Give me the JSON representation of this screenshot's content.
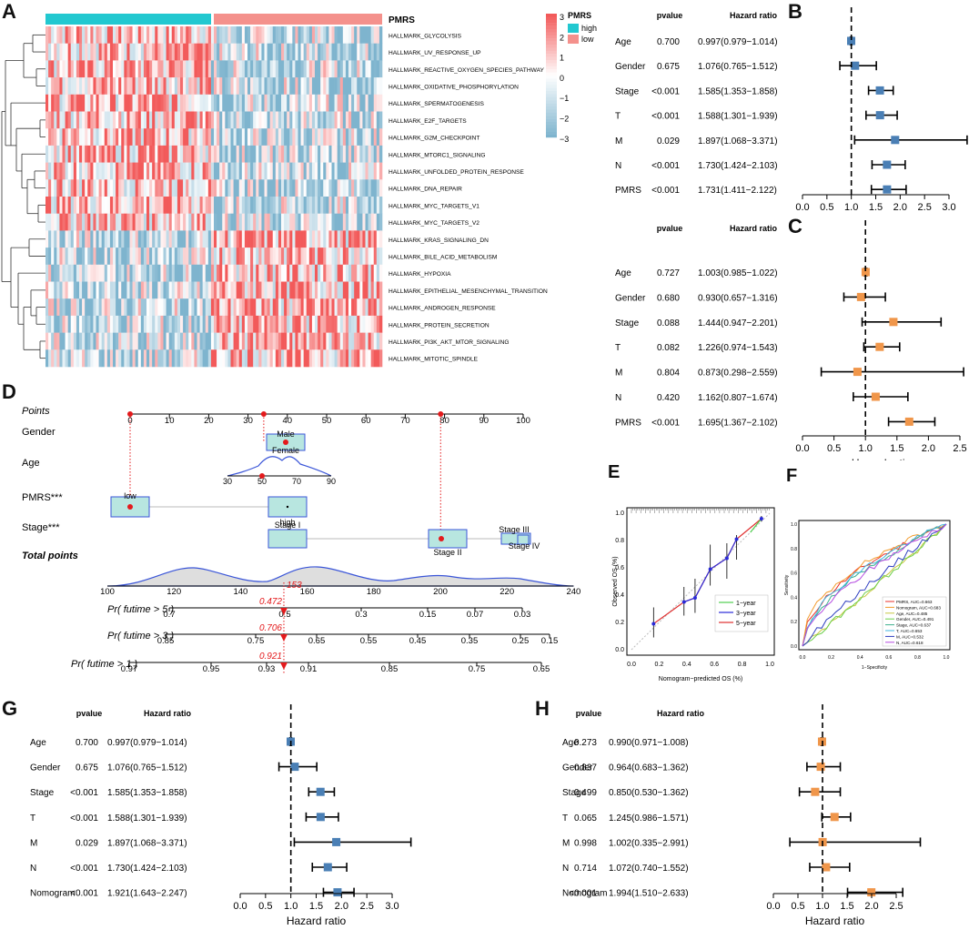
{
  "colors": {
    "high": "#22c8d0",
    "low": "#f4918c",
    "blue": "#4a7fb5",
    "orange": "#f0964a",
    "hot": "#f24e4e",
    "cold": "#8fc4d8",
    "nomo_box": "#b8e6e0",
    "nomo_edge": "#3a55d8",
    "dot": "#e41a1c"
  },
  "panel_labels": {
    "a": "A",
    "b": "B",
    "c": "C",
    "d": "D",
    "e": "E",
    "f": "F",
    "g": "G",
    "h": "H"
  },
  "heatmap": {
    "group_title": "PMRS",
    "legend_title": "PMRS",
    "legend_high": "high",
    "legend_low": "low",
    "scale_ticks": [
      "3",
      "2",
      "1",
      "0",
      "−1",
      "−2",
      "−3"
    ],
    "genesets": [
      "HALLMARK_GLYCOLYSIS",
      "HALLMARK_UV_RESPONSE_UP",
      "HALLMARK_REACTIVE_OXYGEN_SPECIES_PATHWAY",
      "HALLMARK_OXIDATIVE_PHOSPHORYLATION",
      "HALLMARK_SPERMATOGENESIS",
      "HALLMARK_E2F_TARGETS",
      "HALLMARK_G2M_CHECKPOINT",
      "HALLMARK_MTORC1_SIGNALING",
      "HALLMARK_UNFOLDED_PROTEIN_RESPONSE",
      "HALLMARK_DNA_REPAIR",
      "HALLMARK_MYC_TARGETS_V1",
      "HALLMARK_MYC_TARGETS_V2",
      "HALLMARK_KRAS_SIGNALING_DN",
      "HALLMARK_BILE_ACID_METABOLISM",
      "HALLMARK_HYPOXIA",
      "HALLMARK_EPITHELIAL_MESENCHYMAL_TRANSITION",
      "HALLMARK_ANDROGEN_RESPONSE",
      "HALLMARK_PROTEIN_SECRETION",
      "HALLMARK_PI3K_AKT_MTOR_SIGNALING",
      "HALLMARK_MITOTIC_SPINDLE"
    ]
  },
  "nomogram": {
    "row_labels": [
      "Points",
      "Gender",
      "Age",
      "PMRS***",
      "Stage***",
      "Total points",
      "Pr( futime > 5 )",
      "Pr( futime > 3 )",
      "Pr( futime > 1 )"
    ],
    "points_ticks": [
      "0",
      "10",
      "20",
      "30",
      "40",
      "50",
      "60",
      "70",
      "80",
      "90",
      "100"
    ],
    "gender_labels": [
      "Male",
      "Female"
    ],
    "age_ticks": [
      "30",
      "50",
      "70",
      "90"
    ],
    "pmrs_labels": [
      "low",
      "high"
    ],
    "stage_labels": [
      "Stage I",
      "Stage II",
      "Stage III",
      "Stage IV"
    ],
    "total_ticks": [
      "100",
      "120",
      "140",
      "160",
      "180",
      "200",
      "220",
      "240"
    ],
    "total_value": "153",
    "pr5_ticks": [
      "0.7",
      "0.5",
      "0.3",
      "0.15",
      "0.07",
      "0.03"
    ],
    "pr5_value": "0.472",
    "pr3_ticks": [
      "0.85",
      "0.75",
      "0.65",
      "0.55",
      "0.45",
      "0.35",
      "0.25",
      "0.15"
    ],
    "pr3_value": "0.706",
    "pr1_ticks": [
      "0.97",
      "0.95",
      "0.93",
      "0.91",
      "0.85",
      "0.75",
      "0.65"
    ],
    "pr1_value": "0.921"
  },
  "chart_data": [
    {
      "id": "B",
      "type": "forest",
      "col_pvalue": "pvalue",
      "col_hr": "Hazard ratio",
      "xlabel": "Hazard ratio",
      "xlim": [
        0,
        3
      ],
      "xticks": [
        "0.0",
        "0.5",
        "1.0",
        "1.5",
        "2.0",
        "2.5",
        "3.0"
      ],
      "ref": 1,
      "color": "blue",
      "rows": [
        {
          "label": "Age",
          "pvalue": "0.700",
          "hr_text": "0.997(0.979−1.014)",
          "hr": 0.997,
          "lo": 0.979,
          "hi": 1.014
        },
        {
          "label": "Gender",
          "pvalue": "0.675",
          "hr_text": "1.076(0.765−1.512)",
          "hr": 1.076,
          "lo": 0.765,
          "hi": 1.512
        },
        {
          "label": "Stage",
          "pvalue": "<0.001",
          "hr_text": "1.585(1.353−1.858)",
          "hr": 1.585,
          "lo": 1.353,
          "hi": 1.858
        },
        {
          "label": "T",
          "pvalue": "<0.001",
          "hr_text": "1.588(1.301−1.939)",
          "hr": 1.588,
          "lo": 1.301,
          "hi": 1.939
        },
        {
          "label": "M",
          "pvalue": "0.029",
          "hr_text": "1.897(1.068−3.371)",
          "hr": 1.897,
          "lo": 1.068,
          "hi": 3.371
        },
        {
          "label": "N",
          "pvalue": "<0.001",
          "hr_text": "1.730(1.424−2.103)",
          "hr": 1.73,
          "lo": 1.424,
          "hi": 2.103
        },
        {
          "label": "PMRS",
          "pvalue": "<0.001",
          "hr_text": "1.731(1.411−2.122)",
          "hr": 1.731,
          "lo": 1.411,
          "hi": 2.122
        }
      ]
    },
    {
      "id": "C",
      "type": "forest",
      "col_pvalue": "pvalue",
      "col_hr": "Hazard ratio",
      "xlabel": "Hazard ratio",
      "xlim": [
        0,
        2.5
      ],
      "xticks": [
        "0.0",
        "0.5",
        "1.0",
        "1.5",
        "2.0",
        "2.5"
      ],
      "ref": 1,
      "color": "orange",
      "rows": [
        {
          "label": "Age",
          "pvalue": "0.727",
          "hr_text": "1.003(0.985−1.022)",
          "hr": 1.003,
          "lo": 0.985,
          "hi": 1.022
        },
        {
          "label": "Gender",
          "pvalue": "0.680",
          "hr_text": "0.930(0.657−1.316)",
          "hr": 0.93,
          "lo": 0.657,
          "hi": 1.316
        },
        {
          "label": "Stage",
          "pvalue": "0.088",
          "hr_text": "1.444(0.947−2.201)",
          "hr": 1.444,
          "lo": 0.947,
          "hi": 2.201
        },
        {
          "label": "T",
          "pvalue": "0.082",
          "hr_text": "1.226(0.974−1.543)",
          "hr": 1.226,
          "lo": 0.974,
          "hi": 1.543
        },
        {
          "label": "M",
          "pvalue": "0.804",
          "hr_text": "0.873(0.298−2.559)",
          "hr": 0.873,
          "lo": 0.298,
          "hi": 2.559
        },
        {
          "label": "N",
          "pvalue": "0.420",
          "hr_text": "1.162(0.807−1.674)",
          "hr": 1.162,
          "lo": 0.807,
          "hi": 1.674
        },
        {
          "label": "PMRS",
          "pvalue": "<0.001",
          "hr_text": "1.695(1.367−2.102)",
          "hr": 1.695,
          "lo": 1.367,
          "hi": 2.102
        }
      ]
    },
    {
      "id": "G",
      "type": "forest",
      "col_pvalue": "pvalue",
      "col_hr": "Hazard ratio",
      "xlabel": "Hazard ratio",
      "xlim": [
        0,
        3
      ],
      "xticks": [
        "0.0",
        "0.5",
        "1.0",
        "1.5",
        "2.0",
        "2.5",
        "3.0"
      ],
      "ref": 1,
      "color": "blue",
      "rows": [
        {
          "label": "Age",
          "pvalue": "0.700",
          "hr_text": "0.997(0.979−1.014)",
          "hr": 0.997,
          "lo": 0.979,
          "hi": 1.014
        },
        {
          "label": "Gender",
          "pvalue": "0.675",
          "hr_text": "1.076(0.765−1.512)",
          "hr": 1.076,
          "lo": 0.765,
          "hi": 1.512
        },
        {
          "label": "Stage",
          "pvalue": "<0.001",
          "hr_text": "1.585(1.353−1.858)",
          "hr": 1.585,
          "lo": 1.353,
          "hi": 1.858
        },
        {
          "label": "T",
          "pvalue": "<0.001",
          "hr_text": "1.588(1.301−1.939)",
          "hr": 1.588,
          "lo": 1.301,
          "hi": 1.939
        },
        {
          "label": "M",
          "pvalue": "0.029",
          "hr_text": "1.897(1.068−3.371)",
          "hr": 1.897,
          "lo": 1.068,
          "hi": 3.371
        },
        {
          "label": "N",
          "pvalue": "<0.001",
          "hr_text": "1.730(1.424−2.103)",
          "hr": 1.73,
          "lo": 1.424,
          "hi": 2.103
        },
        {
          "label": "Nomogram",
          "pvalue": "<0.001",
          "hr_text": "1.921(1.643−2.247)",
          "hr": 1.921,
          "lo": 1.643,
          "hi": 2.247
        }
      ]
    },
    {
      "id": "H",
      "type": "forest",
      "col_pvalue": "pvalue",
      "col_hr": "Hazard ratio",
      "xlabel": "Hazard ratio",
      "xlim": [
        0,
        2.5
      ],
      "xticks": [
        "0.0",
        "0.5",
        "1.0",
        "1.5",
        "2.0",
        "2.5"
      ],
      "ref": 1,
      "color": "orange",
      "rows": [
        {
          "label": "Age",
          "pvalue": "0.273",
          "hr_text": "0.990(0.971−1.008)",
          "hr": 0.99,
          "lo": 0.971,
          "hi": 1.008
        },
        {
          "label": "Gender",
          "pvalue": "0.837",
          "hr_text": "0.964(0.683−1.362)",
          "hr": 0.964,
          "lo": 0.683,
          "hi": 1.362
        },
        {
          "label": "Stage",
          "pvalue": "0.499",
          "hr_text": "0.850(0.530−1.362)",
          "hr": 0.85,
          "lo": 0.53,
          "hi": 1.362
        },
        {
          "label": "T",
          "pvalue": "0.065",
          "hr_text": "1.245(0.986−1.571)",
          "hr": 1.245,
          "lo": 0.986,
          "hi": 1.571
        },
        {
          "label": "M",
          "pvalue": "0.998",
          "hr_text": "1.002(0.335−2.991)",
          "hr": 1.002,
          "lo": 0.335,
          "hi": 2.991
        },
        {
          "label": "N",
          "pvalue": "0.714",
          "hr_text": "1.072(0.740−1.552)",
          "hr": 1.072,
          "lo": 0.74,
          "hi": 1.552
        },
        {
          "label": "Nomogram",
          "pvalue": "<0.001",
          "hr_text": "1.994(1.510−2.633)",
          "hr": 1.994,
          "lo": 1.51,
          "hi": 2.633
        }
      ]
    },
    {
      "id": "E",
      "type": "line",
      "title": "",
      "xlabel": "Nomogram−predicted OS (%)",
      "ylabel": "Observed OS (%)",
      "xlim": [
        0,
        1
      ],
      "ylim": [
        0,
        1
      ],
      "xticks": [
        "0.0",
        "0.2",
        "0.4",
        "0.6",
        "0.8",
        "1.0"
      ],
      "yticks": [
        "0.0",
        "0.2",
        "0.4",
        "0.6",
        "0.8",
        "1.0"
      ],
      "legend": [
        "1−year",
        "3−year",
        "5−year"
      ],
      "points_x": [
        0.16,
        0.38,
        0.46,
        0.57,
        0.69,
        0.76,
        0.94
      ],
      "points_y": [
        0.19,
        0.35,
        0.38,
        0.59,
        0.67,
        0.81,
        0.96
      ],
      "err_lo": [
        0.09,
        0.25,
        0.27,
        0.47,
        0.52,
        0.66,
        0.94
      ],
      "err_hi": [
        0.31,
        0.46,
        0.52,
        0.77,
        0.78,
        0.84,
        0.98
      ]
    },
    {
      "id": "F",
      "type": "line",
      "title": "",
      "xlabel": "1−Specificity",
      "ylabel": "Sensitivity",
      "xticks": [
        "0.0",
        "0.2",
        "0.4",
        "0.6",
        "0.8",
        "1.0"
      ],
      "yticks": [
        "0.0",
        "0.2",
        "0.4",
        "0.6",
        "0.8",
        "1.0"
      ],
      "series": [
        {
          "name": "PMRS, AUC=0.663",
          "color": "#e8322b",
          "auc": 0.663
        },
        {
          "name": "Nomogram, AUC=0.683",
          "color": "#f29b2d",
          "auc": 0.683
        },
        {
          "name": "Age, AUC=0.485",
          "color": "#c8c840",
          "auc": 0.485
        },
        {
          "name": "Gender, AUC=0.491",
          "color": "#6ccf4a",
          "auc": 0.491
        },
        {
          "name": "Stage, AUC=0.637",
          "color": "#3fb08f",
          "auc": 0.637
        },
        {
          "name": "T, AUC=0.653",
          "color": "#3fb6e0",
          "auc": 0.653
        },
        {
          "name": "M, AUC=0.532",
          "color": "#2f3fc0",
          "auc": 0.532
        },
        {
          "name": "N, AUC=0.618",
          "color": "#b54be0",
          "auc": 0.618
        }
      ]
    }
  ]
}
